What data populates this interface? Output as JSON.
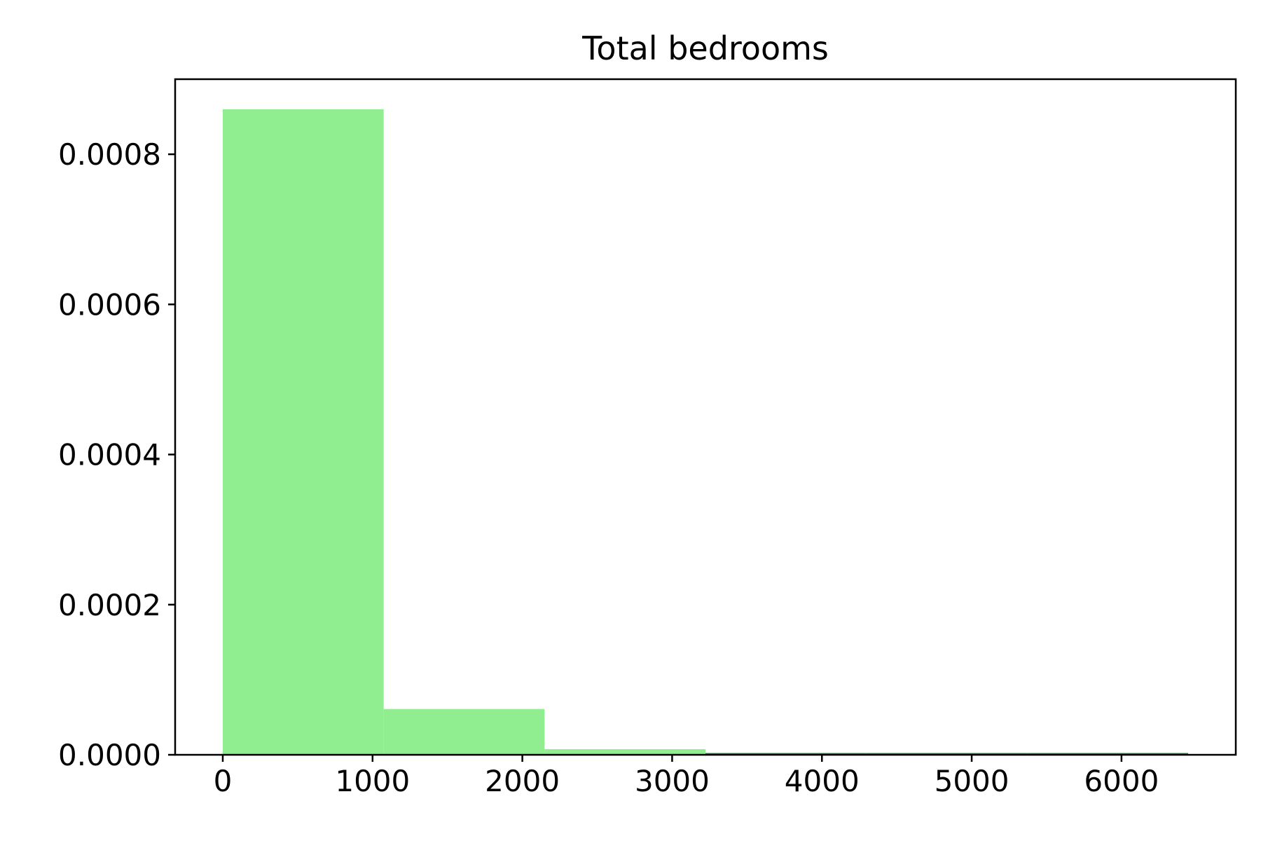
{
  "chart_data": {
    "type": "bar",
    "title": "Total bedrooms",
    "xlabel": "",
    "ylabel": "",
    "bin_edges": [
      0,
      1074.1667,
      2148.3333,
      3222.5,
      4296.6667,
      5370.8333,
      6445
    ],
    "values": [
      0.00086,
      6.1e-05,
      7.5e-06,
      1.2e-06,
      2e-07,
      1e-07
    ],
    "xlim": [
      -318,
      6763
    ],
    "ylim": [
      0,
      0.0009
    ],
    "xticks": [
      0,
      1000,
      2000,
      3000,
      4000,
      5000,
      6000
    ],
    "xtick_labels": [
      "0",
      "1000",
      "2000",
      "3000",
      "4000",
      "5000",
      "6000"
    ],
    "yticks": [
      0,
      0.0002,
      0.0004,
      0.0006,
      0.0008
    ],
    "ytick_labels": [
      "0.0000",
      "0.0002",
      "0.0004",
      "0.0006",
      "0.0008"
    ],
    "grid": false,
    "bar_color": "#90EE90",
    "bar_edge_color": "#2E7D32"
  }
}
